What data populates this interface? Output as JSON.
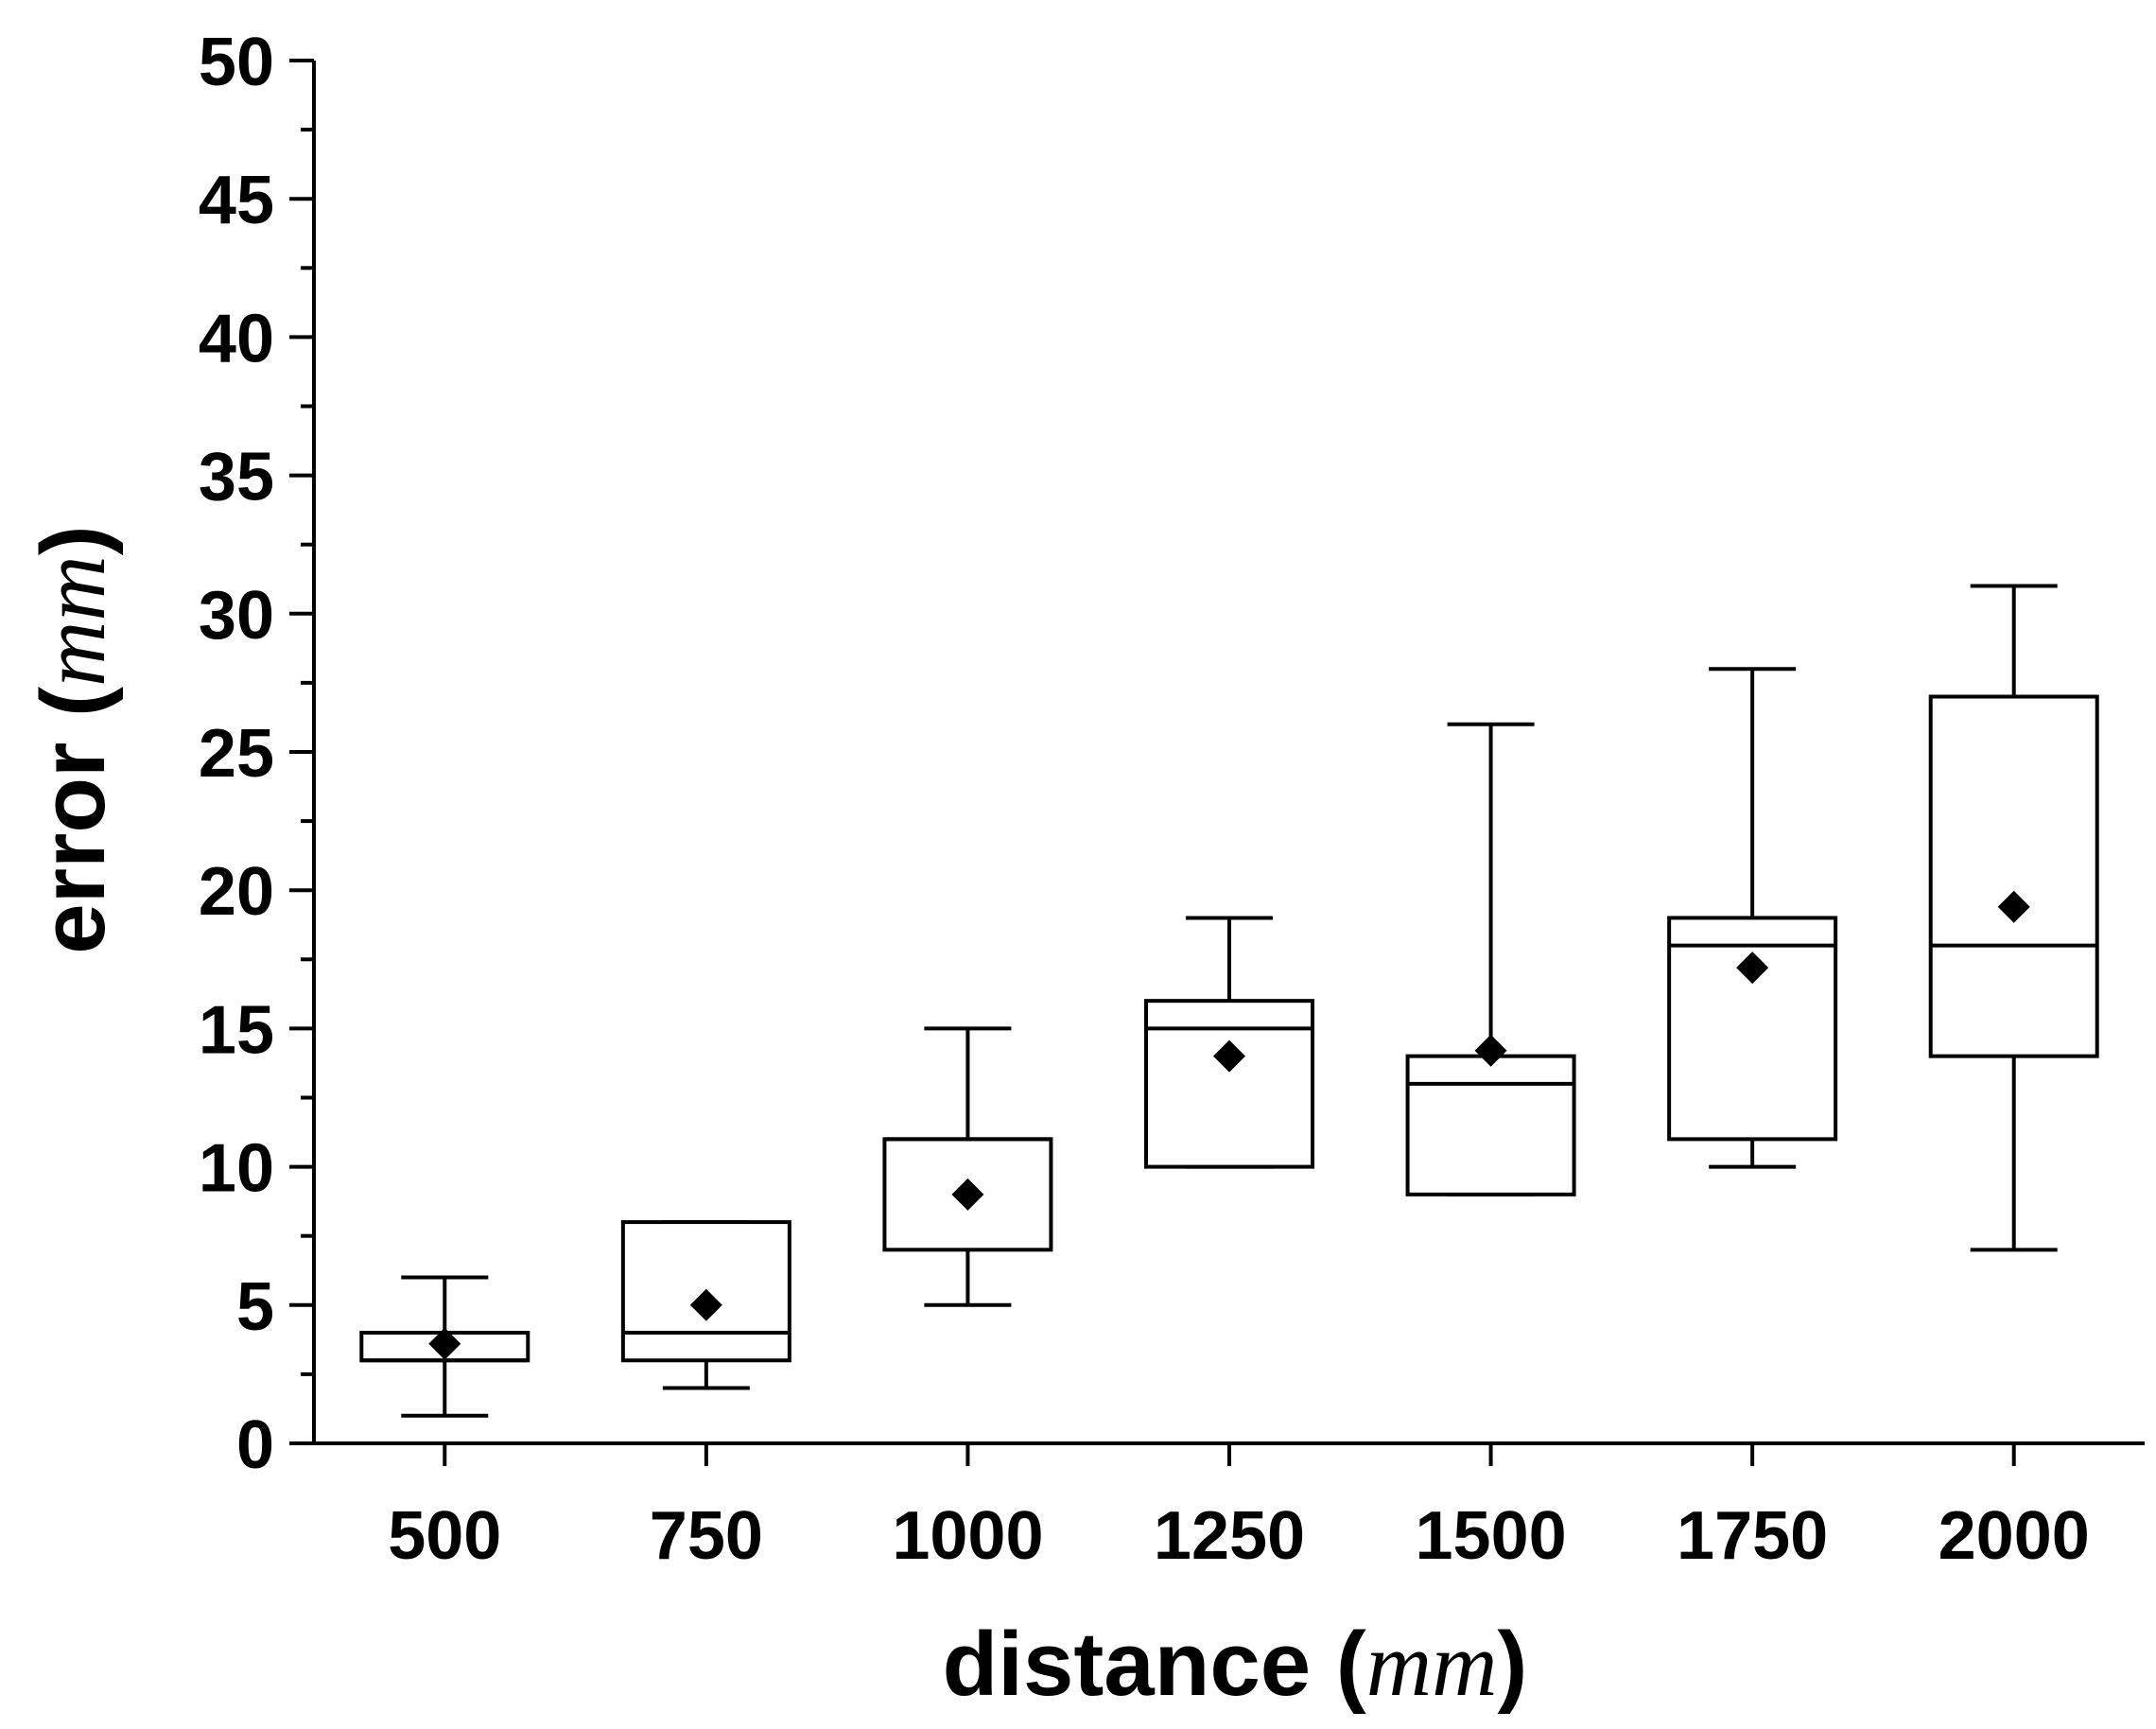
{
  "chart_data": {
    "type": "box",
    "xlabel": "distance",
    "xlabel_unit": "mm",
    "ylabel": "error",
    "ylabel_unit": "mm",
    "ylim": [
      0,
      50
    ],
    "yticks": [
      0,
      5,
      10,
      15,
      20,
      25,
      30,
      35,
      40,
      45,
      50
    ],
    "y_minor_step": 2.5,
    "categories": [
      "500",
      "750",
      "1000",
      "1250",
      "1500",
      "1750",
      "2000"
    ],
    "boxes": [
      {
        "category": "500",
        "whisker_low": 1,
        "q1": 3,
        "median": 3,
        "q3": 4,
        "whisker_high": 6,
        "mean": 3.6
      },
      {
        "category": "750",
        "whisker_low": 2,
        "q1": 3,
        "median": 4,
        "q3": 8,
        "whisker_high": 8,
        "mean": 5.0
      },
      {
        "category": "1000",
        "whisker_low": 5,
        "q1": 7,
        "median": 11,
        "q3": 11,
        "whisker_high": 15,
        "mean": 9.0
      },
      {
        "category": "1250",
        "whisker_low": 10,
        "q1": 10,
        "median": 15,
        "q3": 16,
        "whisker_high": 19,
        "mean": 14.0
      },
      {
        "category": "1500",
        "whisker_low": 9,
        "q1": 9,
        "median": 13,
        "q3": 14,
        "whisker_high": 26,
        "mean": 14.2
      },
      {
        "category": "1750",
        "whisker_low": 10,
        "q1": 11,
        "median": 18,
        "q3": 19,
        "whisker_high": 28,
        "mean": 17.2
      },
      {
        "category": "2000",
        "whisker_low": 7,
        "q1": 14,
        "median": 18,
        "q3": 27,
        "whisker_high": 31,
        "mean": 19.4
      }
    ],
    "mean_marker": "diamond",
    "colors": {
      "stroke": "#000000",
      "box_fill": "#ffffff",
      "mean_fill": "#000000",
      "background": "#ffffff"
    },
    "grid": false,
    "legend": "none"
  }
}
